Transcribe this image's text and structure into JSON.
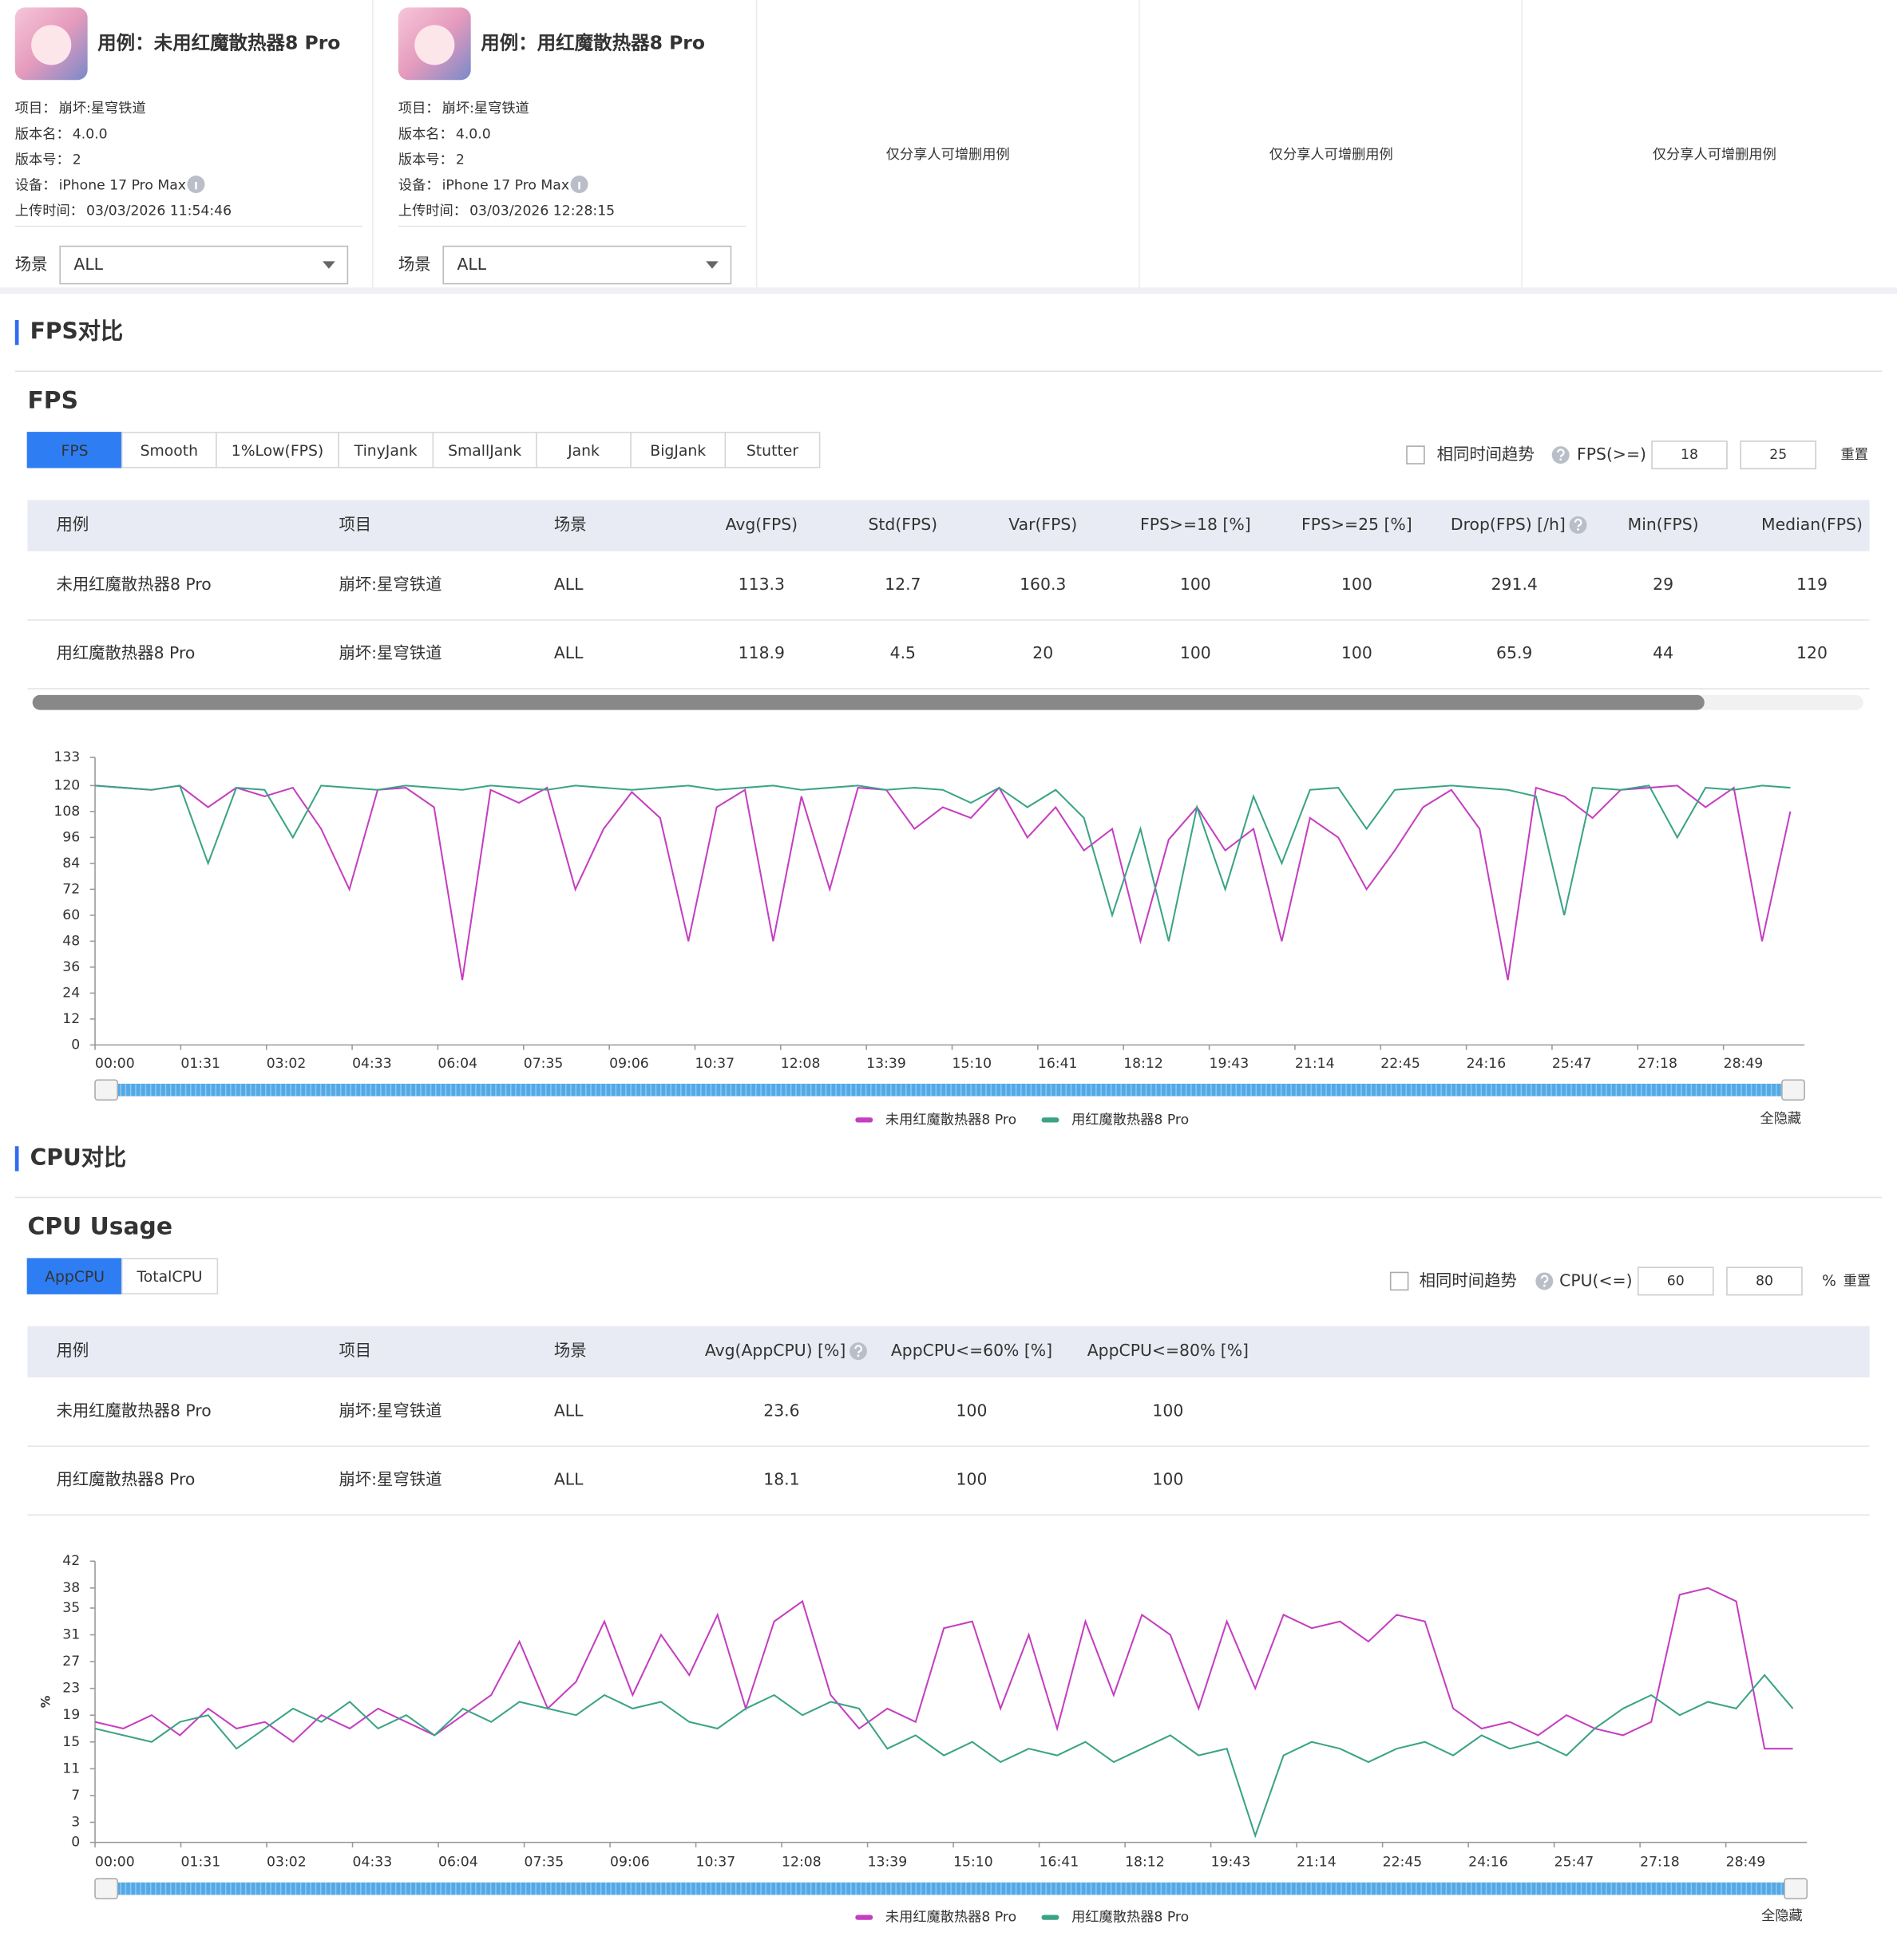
{
  "cases": [
    {
      "title": "用例：未用红魔散热器8 Pro",
      "fields": [
        {
          "label": "项目：",
          "value": "崩坏:星穹铁道"
        },
        {
          "label": "版本名：",
          "value": "4.0.0"
        },
        {
          "label": "版本号：",
          "value": "2"
        },
        {
          "label": "设备：",
          "value": "iPhone 17 Pro Max"
        },
        {
          "label": "上传时间：",
          "value": "03/03/2026 11:54:46"
        }
      ],
      "scene_label": "场景",
      "scene": "ALL"
    },
    {
      "title": "用例：用红魔散热器8 Pro",
      "fields": [
        {
          "label": "项目：",
          "value": "崩坏:星穹铁道"
        },
        {
          "label": "版本名：",
          "value": "4.0.0"
        },
        {
          "label": "版本号：",
          "value": "2"
        },
        {
          "label": "设备：",
          "value": "iPhone 17 Pro Max"
        },
        {
          "label": "上传时间：",
          "value": "03/03/2026 12:28:15"
        }
      ],
      "scene_label": "场景",
      "scene": "ALL"
    }
  ],
  "empty_slots": [
    "仅分享人可增删用例",
    "仅分享人可增删用例",
    "仅分享人可增删用例"
  ],
  "sections": [
    {
      "heading": "FPS对比",
      "subtitle": "FPS",
      "tabs": [
        "FPS",
        "Smooth",
        "1%Low(FPS)",
        "TinyJank",
        "SmallJank",
        "Jank",
        "BigJank",
        "Stutter"
      ],
      "active_tab": 0,
      "controls": {
        "checkbox_label": "相同时间趋势",
        "threshold_label": "FPS(>=)",
        "thresholds": [
          18,
          25
        ],
        "reset": "重置"
      },
      "table": {
        "columns": [
          "用例",
          "项目",
          "场景",
          "Avg(FPS)",
          "Std(FPS)",
          "Var(FPS)",
          "FPS>=18 [%]",
          "FPS>=25 [%]",
          "Drop(FPS) [/h]",
          "Min(FPS)",
          "Median(FPS)"
        ],
        "rows": [
          [
            "未用红魔散热器8 Pro",
            "崩坏:星穹铁道",
            "ALL",
            113.3,
            12.7,
            160.3,
            100,
            100,
            291.4,
            29,
            119
          ],
          [
            "用红魔散热器8 Pro",
            "崩坏:星穹铁道",
            "ALL",
            118.9,
            4.5,
            20,
            100,
            100,
            65.9,
            44,
            120
          ]
        ]
      },
      "hide_all": "全隐藏"
    },
    {
      "heading": "CPU对比",
      "subtitle": "CPU Usage",
      "tabs": [
        "AppCPU",
        "TotalCPU"
      ],
      "active_tab": 0,
      "controls": {
        "checkbox_label": "相同时间趋势",
        "threshold_label": "CPU(<=)",
        "thresholds": [
          60,
          80
        ],
        "unit": "%",
        "reset": "重置"
      },
      "table": {
        "columns": [
          "用例",
          "项目",
          "场景",
          "Avg(AppCPU) [%]",
          "AppCPU<=60% [%]",
          "AppCPU<=80% [%]"
        ],
        "rows": [
          [
            "未用红魔散热器8 Pro",
            "崩坏:星穹铁道",
            "ALL",
            23.6,
            100,
            100
          ],
          [
            "用红魔散热器8 Pro",
            "崩坏:星穹铁道",
            "ALL",
            18.1,
            100,
            100
          ]
        ]
      },
      "hide_all": "全隐藏"
    }
  ],
  "chart_data": [
    {
      "type": "line",
      "x": [
        0,
        30,
        60,
        90,
        120,
        150,
        180,
        210,
        240,
        270,
        300,
        330,
        360,
        390,
        420,
        450,
        480,
        510,
        540,
        570,
        600,
        630,
        660,
        690,
        720,
        750,
        780,
        810,
        840,
        870,
        900,
        930,
        960,
        990,
        1020,
        1050,
        1080,
        1110,
        1140,
        1170,
        1200,
        1230,
        1260,
        1290,
        1320,
        1350,
        1380,
        1410,
        1440,
        1470,
        1500,
        1530,
        1560,
        1590,
        1620,
        1650,
        1680,
        1710,
        1740,
        1770,
        1800
      ],
      "xlim": [
        0,
        1815
      ],
      "xticks": [
        {
          "value": 0,
          "label": "00:00"
        },
        {
          "value": 91,
          "label": "01:31"
        },
        {
          "value": 182,
          "label": "03:02"
        },
        {
          "value": 273,
          "label": "04:33"
        },
        {
          "value": 364,
          "label": "06:04"
        },
        {
          "value": 455,
          "label": "07:35"
        },
        {
          "value": 546,
          "label": "09:06"
        },
        {
          "value": 637,
          "label": "10:37"
        },
        {
          "value": 728,
          "label": "12:08"
        },
        {
          "value": 819,
          "label": "13:39"
        },
        {
          "value": 910,
          "label": "15:10"
        },
        {
          "value": 1001,
          "label": "16:41"
        },
        {
          "value": 1092,
          "label": "18:12"
        },
        {
          "value": 1183,
          "label": "19:43"
        },
        {
          "value": 1274,
          "label": "21:14"
        },
        {
          "value": 1365,
          "label": "22:45"
        },
        {
          "value": 1456,
          "label": "24:16"
        },
        {
          "value": 1547,
          "label": "25:47"
        },
        {
          "value": 1638,
          "label": "27:18"
        },
        {
          "value": 1729,
          "label": "28:49"
        }
      ],
      "ylim": [
        0,
        133
      ],
      "yticks": [
        0,
        12,
        24,
        36,
        48,
        60,
        72,
        84,
        96,
        108,
        120,
        133
      ],
      "series": [
        {
          "name": "未用红魔散热器8 Pro",
          "color": "#c53ec0",
          "values": [
            120,
            119,
            118,
            120,
            110,
            119,
            115,
            119,
            100,
            72,
            118,
            119,
            110,
            30,
            118,
            112,
            119,
            72,
            100,
            117,
            105,
            48,
            110,
            118,
            48,
            115,
            72,
            119,
            118,
            100,
            110,
            105,
            119,
            96,
            110,
            90,
            100,
            48,
            95,
            110,
            90,
            100,
            48,
            105,
            96,
            72,
            90,
            110,
            118,
            100,
            30,
            119,
            115,
            105,
            118,
            119,
            120,
            110,
            119,
            48,
            108
          ]
        },
        {
          "name": "用红魔散热器8 Pro",
          "color": "#3aa386",
          "values": [
            120,
            119,
            118,
            120,
            84,
            119,
            118,
            96,
            120,
            119,
            118,
            120,
            119,
            118,
            120,
            119,
            118,
            120,
            119,
            118,
            119,
            120,
            118,
            119,
            120,
            118,
            119,
            120,
            118,
            119,
            118,
            112,
            119,
            110,
            118,
            105,
            60,
            100,
            48,
            110,
            72,
            115,
            84,
            118,
            119,
            100,
            118,
            119,
            120,
            119,
            118,
            115,
            60,
            119,
            118,
            120,
            96,
            119,
            118,
            120,
            119
          ]
        }
      ]
    },
    {
      "type": "line",
      "y_label": "%",
      "x": [
        0,
        30,
        60,
        90,
        120,
        150,
        180,
        210,
        240,
        270,
        300,
        330,
        360,
        390,
        420,
        450,
        480,
        510,
        540,
        570,
        600,
        630,
        660,
        690,
        720,
        750,
        780,
        810,
        840,
        870,
        900,
        930,
        960,
        990,
        1020,
        1050,
        1080,
        1110,
        1140,
        1170,
        1200,
        1230,
        1260,
        1290,
        1320,
        1350,
        1380,
        1410,
        1440,
        1470,
        1500,
        1530,
        1560,
        1590,
        1620,
        1650,
        1680,
        1710,
        1740,
        1770,
        1800
      ],
      "xlim": [
        0,
        1815
      ],
      "xticks": [
        {
          "value": 0,
          "label": "00:00"
        },
        {
          "value": 91,
          "label": "01:31"
        },
        {
          "value": 182,
          "label": "03:02"
        },
        {
          "value": 273,
          "label": "04:33"
        },
        {
          "value": 364,
          "label": "06:04"
        },
        {
          "value": 455,
          "label": "07:35"
        },
        {
          "value": 546,
          "label": "09:06"
        },
        {
          "value": 637,
          "label": "10:37"
        },
        {
          "value": 728,
          "label": "12:08"
        },
        {
          "value": 819,
          "label": "13:39"
        },
        {
          "value": 910,
          "label": "15:10"
        },
        {
          "value": 1001,
          "label": "16:41"
        },
        {
          "value": 1092,
          "label": "18:12"
        },
        {
          "value": 1183,
          "label": "19:43"
        },
        {
          "value": 1274,
          "label": "21:14"
        },
        {
          "value": 1365,
          "label": "22:45"
        },
        {
          "value": 1456,
          "label": "24:16"
        },
        {
          "value": 1547,
          "label": "25:47"
        },
        {
          "value": 1638,
          "label": "27:18"
        },
        {
          "value": 1729,
          "label": "28:49"
        }
      ],
      "ylim": [
        0,
        42
      ],
      "yticks": [
        0,
        3,
        7,
        11,
        15,
        19,
        23,
        27,
        31,
        35,
        38,
        42
      ],
      "series": [
        {
          "name": "未用红魔散热器8 Pro",
          "color": "#c53ec0",
          "values": [
            18,
            17,
            19,
            16,
            20,
            17,
            18,
            15,
            19,
            17,
            20,
            18,
            16,
            19,
            22,
            30,
            20,
            24,
            33,
            22,
            31,
            25,
            34,
            20,
            33,
            36,
            22,
            17,
            20,
            18,
            32,
            33,
            20,
            31,
            17,
            33,
            22,
            34,
            31,
            20,
            33,
            23,
            34,
            32,
            33,
            30,
            34,
            33,
            20,
            17,
            18,
            16,
            19,
            17,
            16,
            18,
            37,
            38,
            36,
            14,
            14
          ]
        },
        {
          "name": "用红魔散热器8 Pro",
          "color": "#3aa386",
          "values": [
            17,
            16,
            15,
            18,
            19,
            14,
            17,
            20,
            18,
            21,
            17,
            19,
            16,
            20,
            18,
            21,
            20,
            19,
            22,
            20,
            21,
            18,
            17,
            20,
            22,
            19,
            21,
            20,
            14,
            16,
            13,
            15,
            12,
            14,
            13,
            15,
            12,
            14,
            16,
            13,
            14,
            1,
            13,
            15,
            14,
            12,
            14,
            15,
            13,
            16,
            14,
            15,
            13,
            17,
            20,
            22,
            19,
            21,
            20,
            25,
            20
          ]
        }
      ]
    }
  ]
}
